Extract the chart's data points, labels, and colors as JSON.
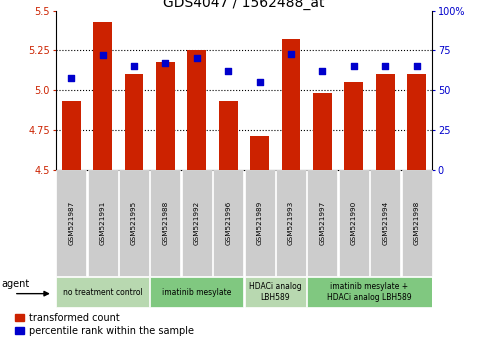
{
  "title": "GDS4047 / 1562488_at",
  "samples": [
    "GSM521987",
    "GSM521991",
    "GSM521995",
    "GSM521988",
    "GSM521992",
    "GSM521996",
    "GSM521989",
    "GSM521993",
    "GSM521997",
    "GSM521990",
    "GSM521994",
    "GSM521998"
  ],
  "bar_values": [
    4.93,
    5.43,
    5.1,
    5.18,
    5.25,
    4.93,
    4.71,
    5.32,
    4.98,
    5.05,
    5.1,
    5.1
  ],
  "percentile_values": [
    58,
    72,
    65,
    67,
    70,
    62,
    55,
    73,
    62,
    65,
    65,
    65
  ],
  "bar_color": "#cc2200",
  "dot_color": "#0000cc",
  "ylim_left": [
    4.5,
    5.5
  ],
  "ylim_right": [
    0,
    100
  ],
  "yticks_left": [
    4.5,
    4.75,
    5.0,
    5.25,
    5.5
  ],
  "yticks_right": [
    0,
    25,
    50,
    75,
    100
  ],
  "grid_lines": [
    4.75,
    5.0,
    5.25
  ],
  "agent_groups": [
    {
      "label": "no treatment control",
      "start": 0,
      "end": 3,
      "color": "#b8d8b0"
    },
    {
      "label": "imatinib mesylate",
      "start": 3,
      "end": 6,
      "color": "#80c880"
    },
    {
      "label": "HDACi analog\nLBH589",
      "start": 6,
      "end": 8,
      "color": "#b8d8b0"
    },
    {
      "label": "imatinib mesylate +\nHDACi analog LBH589",
      "start": 8,
      "end": 12,
      "color": "#80c880"
    }
  ],
  "legend_labels": [
    "transformed count",
    "percentile rank within the sample"
  ],
  "legend_colors": [
    "#cc2200",
    "#0000cc"
  ],
  "agent_label": "agent",
  "bar_width": 0.6,
  "base_value": 4.5,
  "sample_box_color": "#cccccc",
  "title_fontsize": 10
}
